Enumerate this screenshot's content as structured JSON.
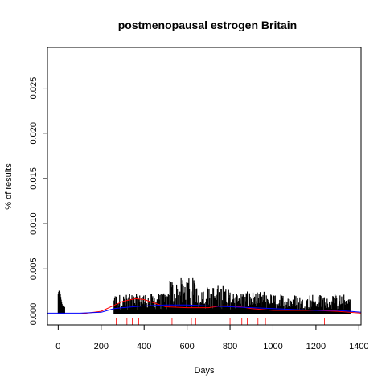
{
  "chart_data": {
    "type": "bar",
    "title": "postmenopausal estrogen Britain",
    "xlabel": "Days",
    "ylabel": "% of results",
    "xlim": [
      -50,
      1410
    ],
    "ylim": [
      -0.0012,
      0.0295
    ],
    "x_ticks": [
      0,
      200,
      400,
      600,
      800,
      1000,
      1200,
      1400
    ],
    "x_tick_labels": [
      "0",
      "200",
      "400",
      "600",
      "800",
      "1000",
      "1200",
      "1400"
    ],
    "y_ticks": [
      0,
      0.005,
      0.01,
      0.015,
      0.02,
      0.025
    ],
    "y_tick_labels": [
      "0.000",
      "0.005",
      "0.010",
      "0.015",
      "0.020",
      "0.025"
    ],
    "grid": false,
    "bar_color": "#000000",
    "series": [
      {
        "name": "",
        "kind": "histogram-bars",
        "color": "#000000",
        "segments": [
          {
            "x_start": 0,
            "x_end": 30,
            "peak": 0.0026,
            "base_level": 0.0012
          },
          {
            "x_start": 260,
            "x_end": 380,
            "peak": 0.0022,
            "base_level": 0.0009
          },
          {
            "x_start": 380,
            "x_end": 520,
            "peak": 0.0023,
            "base_level": 0.001
          },
          {
            "x_start": 520,
            "x_end": 640,
            "peak": 0.004,
            "base_level": 0.0012
          },
          {
            "x_start": 640,
            "x_end": 800,
            "peak": 0.0032,
            "base_level": 0.0011
          },
          {
            "x_start": 800,
            "x_end": 1000,
            "peak": 0.0025,
            "base_level": 0.001
          },
          {
            "x_start": 1000,
            "x_end": 1360,
            "peak": 0.0022,
            "base_level": 0.0009
          }
        ]
      },
      {
        "name": "",
        "kind": "line",
        "color": "#ff0000",
        "x": [
          -50,
          0,
          100,
          200,
          300,
          360,
          400,
          450,
          500,
          600,
          700,
          760,
          800,
          850,
          900,
          1000,
          1100,
          1200,
          1300,
          1410
        ],
        "y": [
          0.0,
          0.0,
          0.0,
          0.0003,
          0.0014,
          0.0017,
          0.0016,
          0.0012,
          0.0008,
          0.0007,
          0.0007,
          0.0009,
          0.0009,
          0.0008,
          0.0006,
          0.0004,
          0.0004,
          0.0004,
          0.0003,
          0.0001
        ]
      },
      {
        "name": "",
        "kind": "line",
        "color": "#0000ff",
        "x": [
          -50,
          0,
          100,
          200,
          260,
          300,
          400,
          500,
          600,
          700,
          800,
          900,
          1000,
          1100,
          1200,
          1300,
          1360,
          1410
        ],
        "y": [
          0.0001,
          0.0001,
          0.0001,
          0.0002,
          0.0006,
          0.0007,
          0.0009,
          0.001,
          0.001,
          0.0009,
          0.0008,
          0.0007,
          0.0006,
          0.0005,
          0.0004,
          0.0004,
          0.0003,
          0.0002
        ]
      }
    ],
    "rug": {
      "color": "#ff0000",
      "x": [
        270,
        320,
        345,
        375,
        530,
        620,
        640,
        800,
        855,
        880,
        930,
        965,
        1240
      ]
    }
  }
}
